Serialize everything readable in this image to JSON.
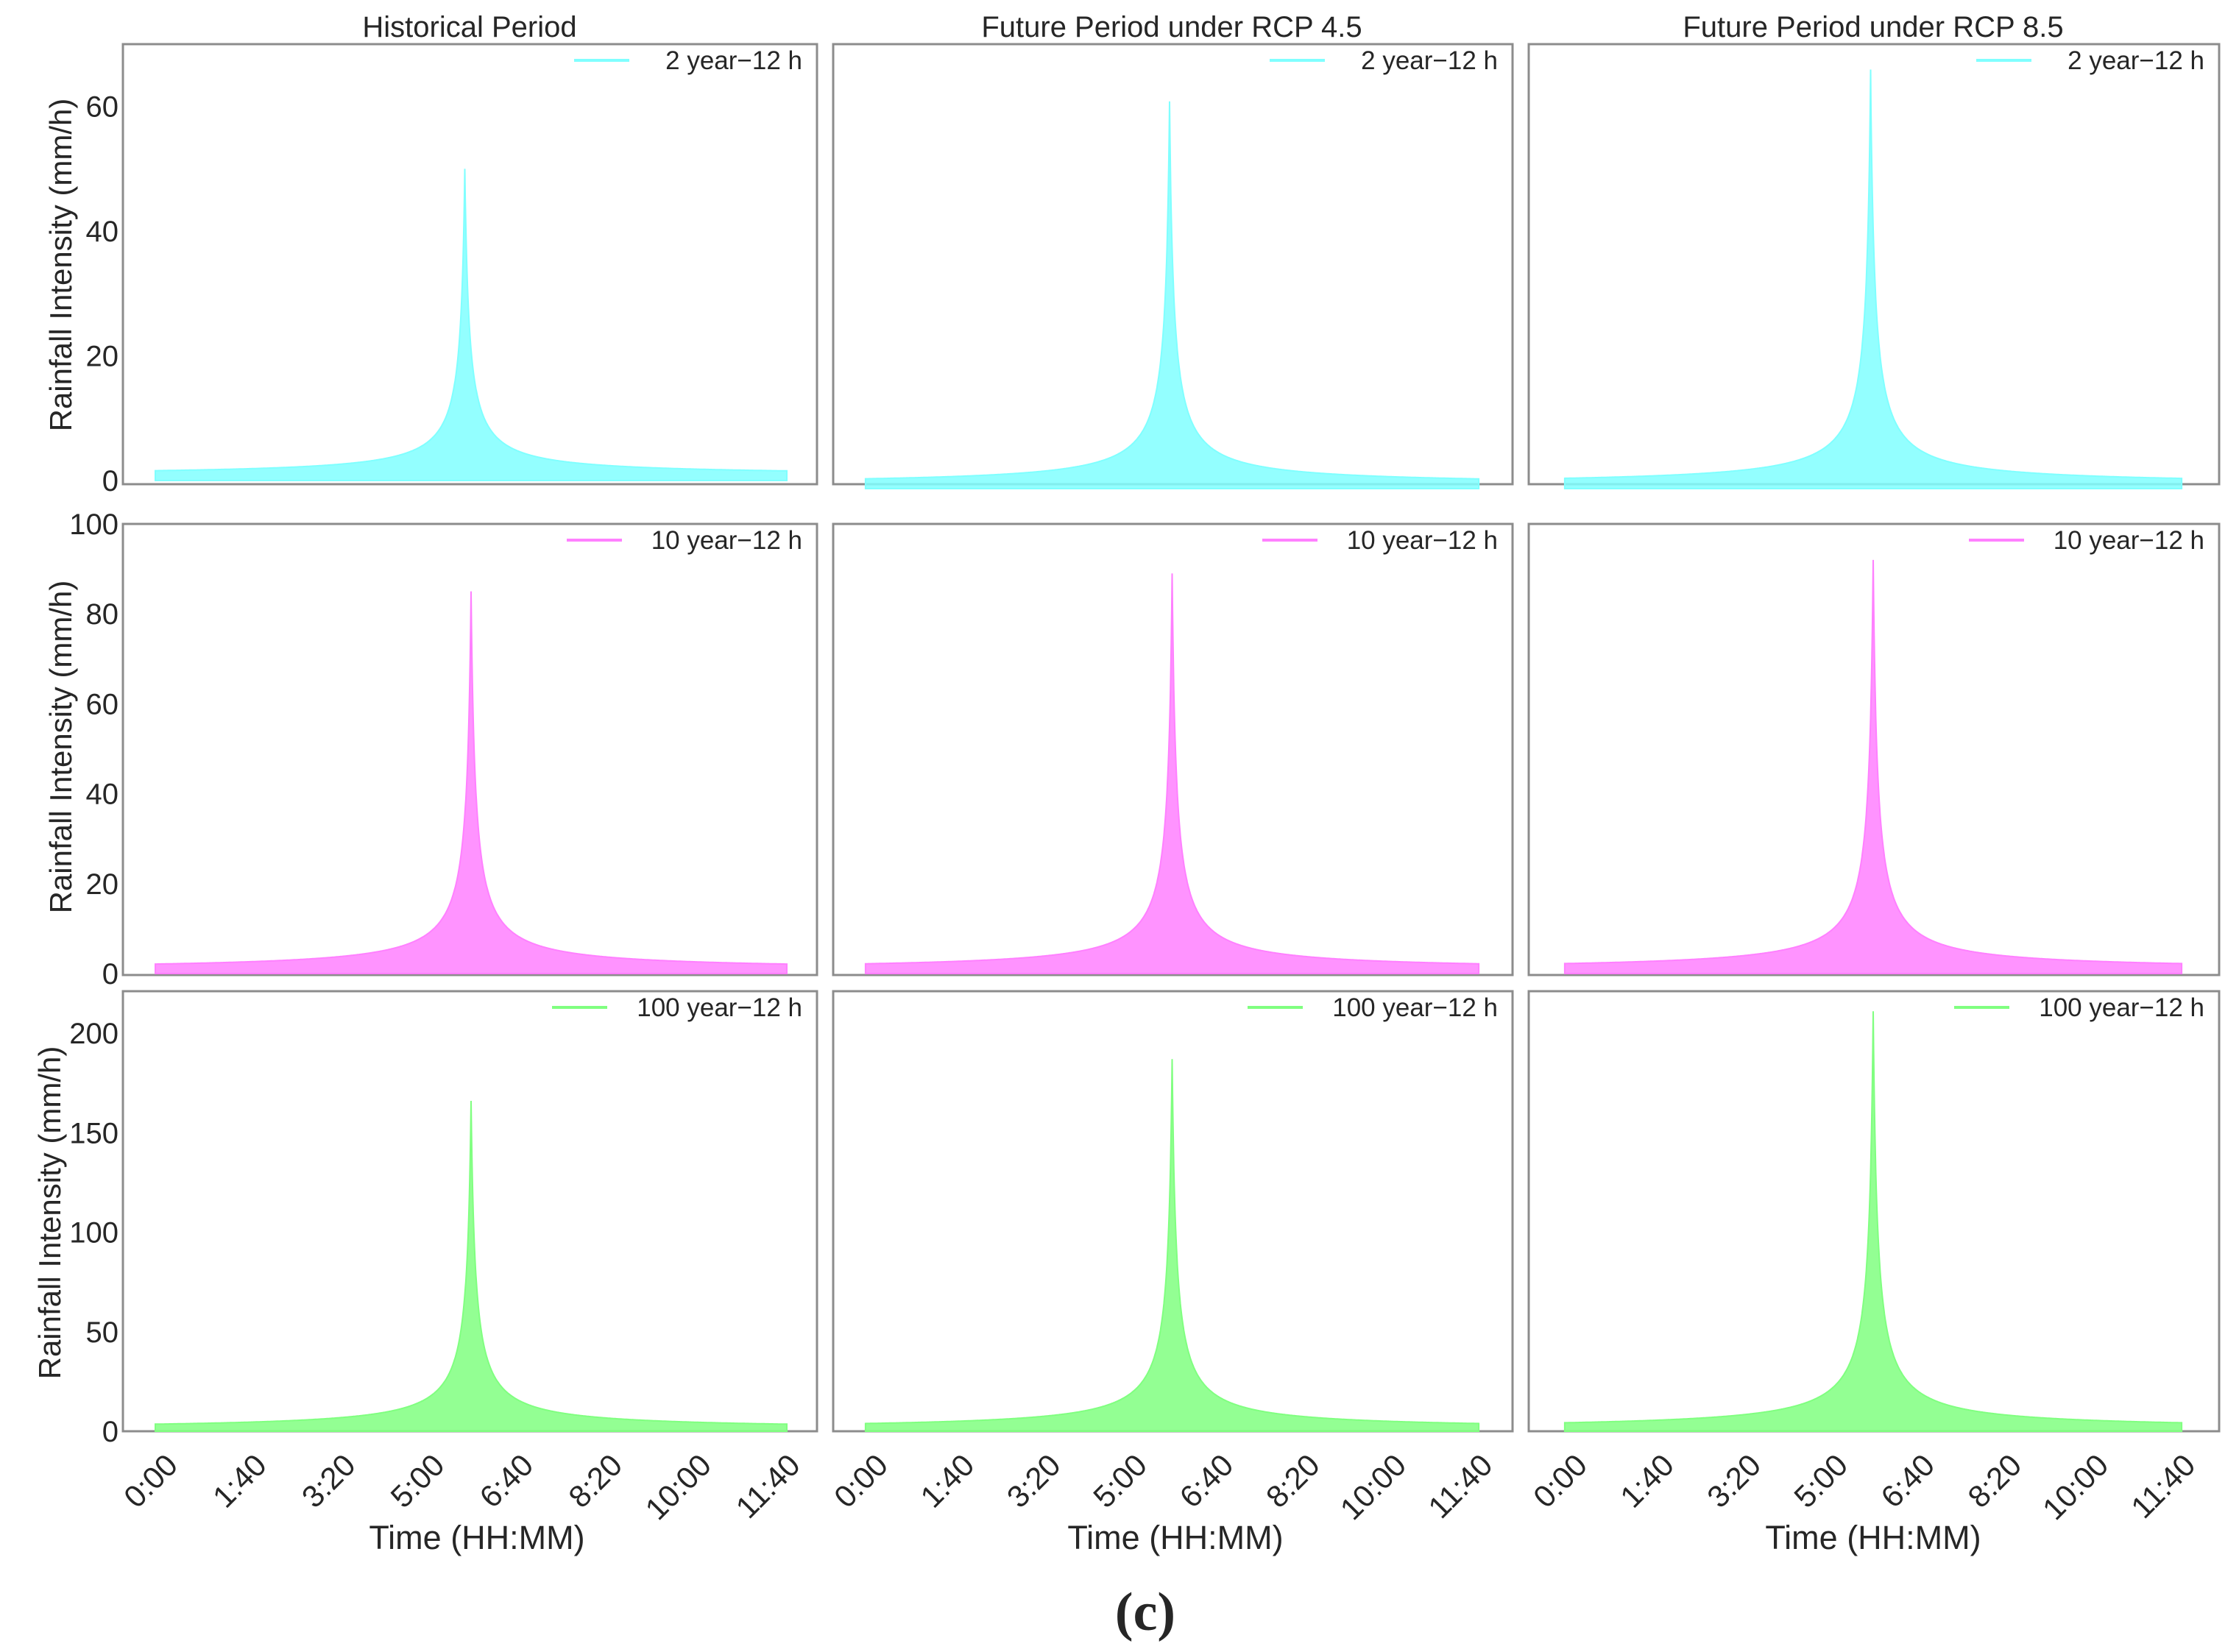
{
  "caption": "(c)",
  "column_titles": [
    "Historical Period",
    "Future Period under RCP 4.5",
    "Future Period under RCP 8.5"
  ],
  "ylabel": "Rainfall Intensity (mm/h)",
  "xlabel": "Time (HH:MM)",
  "colors": {
    "2 year": "#80ffff",
    "10 year": "#ff80ff",
    "100 year": "#80ff80"
  },
  "chart_data": {
    "type": "area",
    "layout": "3 rows x 3 columns of small multiples",
    "x_tick_labels": [
      "0:00",
      "1:40",
      "3:20",
      "5:00",
      "6:40",
      "8:20",
      "10:00",
      "11:40"
    ],
    "x_range_minutes": [
      0,
      720
    ],
    "xlabel": "Time (HH:MM)",
    "ylabel": "Rainfall Intensity (mm/h)",
    "rows": [
      {
        "legend": "2 year−12 h",
        "color": "#80ffff",
        "ylim": [
          0,
          70
        ],
        "y_ticks": [
          0,
          20,
          40,
          60
        ],
        "y_tick_labels": [
          "0",
          "20",
          "40",
          "60"
        ],
        "panels": [
          {
            "column": "Historical Period",
            "peak_time_min": 353,
            "peak_mm_h": 50,
            "start_end_mm_h": 0.8,
            "x_start_min": 5,
            "x_end_min": 715
          },
          {
            "column": "Future Period under RCP 4.5",
            "peak_time_min": 357,
            "peak_mm_h": 61,
            "start_end_mm_h": 0.6,
            "x_start_min": 5,
            "x_end_min": 715
          },
          {
            "column": "Future Period under RCP 8.5",
            "peak_time_min": 357,
            "peak_mm_h": 66,
            "start_end_mm_h": 0.6,
            "x_start_min": 5,
            "x_end_min": 715
          }
        ]
      },
      {
        "legend": "10 year−12 h",
        "color": "#ff80ff",
        "ylim": [
          0,
          100
        ],
        "y_ticks": [
          0,
          20,
          40,
          60,
          80,
          100
        ],
        "y_tick_labels": [
          "0",
          "20",
          "40",
          "60",
          "80",
          "100"
        ],
        "panels": [
          {
            "column": "Historical Period",
            "peak_time_min": 360,
            "peak_mm_h": 85,
            "start_end_mm_h": 0.8,
            "x_start_min": 5,
            "x_end_min": 715
          },
          {
            "column": "Future Period under RCP 4.5",
            "peak_time_min": 360,
            "peak_mm_h": 89,
            "start_end_mm_h": 0.8,
            "x_start_min": 5,
            "x_end_min": 715
          },
          {
            "column": "Future Period under RCP 8.5",
            "peak_time_min": 360,
            "peak_mm_h": 92,
            "start_end_mm_h": 0.8,
            "x_start_min": 5,
            "x_end_min": 715
          }
        ]
      },
      {
        "legend": "100 year−12 h",
        "color": "#80ff80",
        "ylim": [
          0,
          220
        ],
        "y_ticks": [
          0,
          50,
          100,
          150,
          200
        ],
        "y_tick_labels": [
          "0",
          "50",
          "100",
          "150",
          "200"
        ],
        "panels": [
          {
            "column": "Historical Period",
            "peak_time_min": 360,
            "peak_mm_h": 166,
            "start_end_mm_h": 1.0,
            "x_start_min": 5,
            "x_end_min": 715
          },
          {
            "column": "Future Period under RCP 4.5",
            "peak_time_min": 360,
            "peak_mm_h": 187,
            "start_end_mm_h": 1.0,
            "x_start_min": 5,
            "x_end_min": 715
          },
          {
            "column": "Future Period under RCP 8.5",
            "peak_time_min": 360,
            "peak_mm_h": 211,
            "start_end_mm_h": 1.0,
            "x_start_min": 5,
            "x_end_min": 715
          }
        ]
      }
    ]
  }
}
